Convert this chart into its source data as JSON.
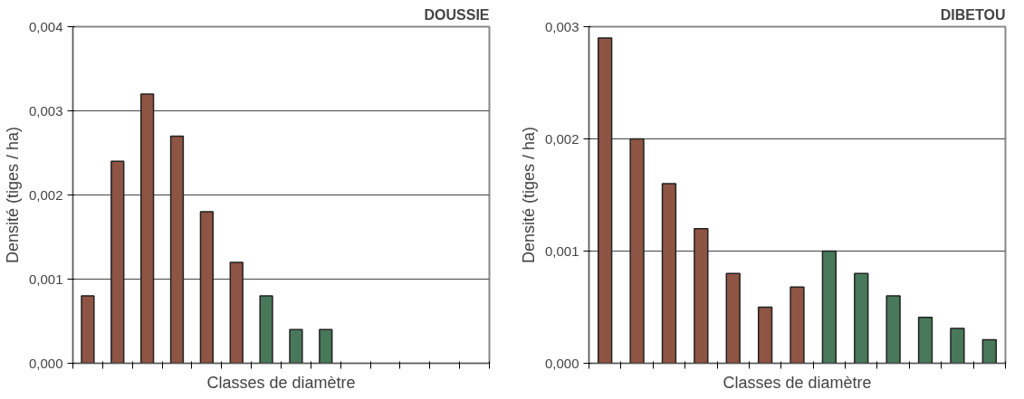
{
  "chart_data": [
    {
      "type": "bar",
      "title": "DOUSSIE",
      "xlabel": "Classes de diamètre",
      "ylabel": "Densité (tiges / ha)",
      "categories": [
        null,
        null,
        null,
        null,
        null,
        null,
        null,
        null,
        null,
        null,
        null,
        null,
        null,
        null
      ],
      "series": [
        {
          "color": "#8e5444",
          "values": [
            0.0008,
            0.0024,
            0.0032,
            0.0027,
            0.0018,
            0.0012,
            null,
            null,
            null,
            null,
            null,
            null,
            null,
            null
          ]
        },
        {
          "color": "#48785a",
          "values": [
            null,
            null,
            null,
            null,
            null,
            null,
            0.0008,
            0.0004,
            0.0004,
            null,
            null,
            null,
            null,
            null
          ]
        }
      ],
      "ylim": [
        0,
        0.004
      ],
      "yticks": [
        {
          "value": 0,
          "label": "0,000"
        },
        {
          "value": 0.001,
          "label": "0,001"
        },
        {
          "value": 0.002,
          "label": "0,002"
        },
        {
          "value": 0.003,
          "label": "0,003"
        },
        {
          "value": 0.004,
          "label": "0,004"
        }
      ],
      "grid": "y"
    },
    {
      "type": "bar",
      "title": "DIBETOU",
      "xlabel": "Classes de diamètre",
      "ylabel": "Densité (tiges / ha)",
      "categories": [
        null,
        null,
        null,
        null,
        null,
        null,
        null,
        null,
        null,
        null,
        null,
        null,
        null
      ],
      "series": [
        {
          "color": "#8e5444",
          "values": [
            0.0029,
            0.002,
            0.0016,
            0.0012,
            0.0008,
            0.0005,
            0.00068,
            null,
            null,
            null,
            null,
            null,
            null
          ]
        },
        {
          "color": "#48785a",
          "values": [
            null,
            null,
            null,
            null,
            null,
            null,
            null,
            0.001,
            0.0008,
            0.0006,
            0.00041,
            0.00031,
            0.00021
          ]
        }
      ],
      "ylim": [
        0,
        0.003
      ],
      "yticks": [
        {
          "value": 0,
          "label": "0,000"
        },
        {
          "value": 0.001,
          "label": "0,001"
        },
        {
          "value": 0.002,
          "label": "0,002"
        },
        {
          "value": 0.003,
          "label": "0,003"
        }
      ],
      "grid": "y"
    }
  ]
}
